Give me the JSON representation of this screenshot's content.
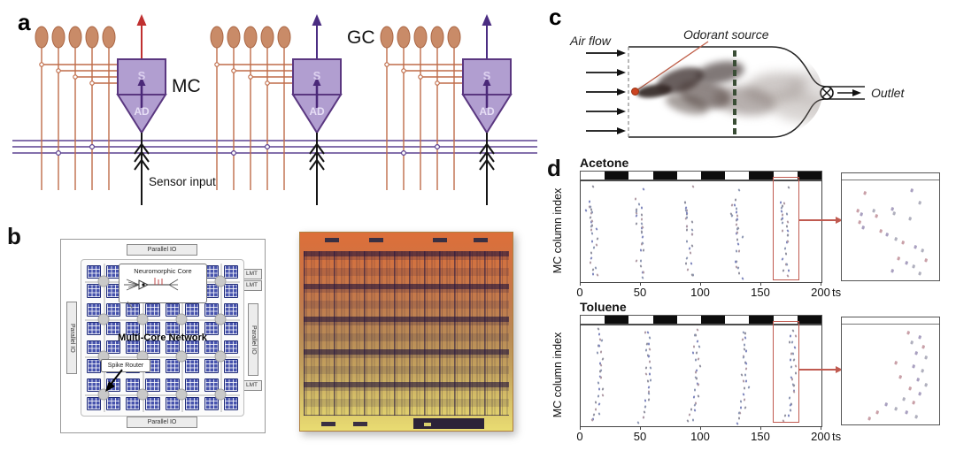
{
  "panels": {
    "a": {
      "label": "a",
      "gc_label": "GC",
      "mc_label": "MC",
      "soma_label": "S",
      "ad_label": "AD",
      "sensor_input_label": "Sensor input",
      "num_units": 3,
      "cells_per_unit": 5,
      "colors": {
        "cell_fill": "#c98b68",
        "cell_stroke": "#aa6644",
        "unit_fill": "#b19ed0",
        "unit_stroke": "#5a3780",
        "orange_line": "#bf6c49",
        "purple_line": "#5c4190",
        "arrow_red": "#c03030",
        "arrow_purple": "#4b2d82",
        "sensor_line": "#151515"
      }
    },
    "b": {
      "label": "b",
      "parallel_io_label": "Parallel IO",
      "lmt_label": "LMT",
      "neuromorphic_core_label": "Neuromorphic Core",
      "network_label": "Multi-Core Network",
      "spike_router_label": "Spike Router",
      "grid": {
        "cols": 8,
        "rows": 8,
        "routers_per_side": 4
      },
      "colors": {
        "core_fill": "#4753ad",
        "core_stroke": "#1e2a78",
        "router_fill": "#c9c9c9",
        "io_fill": "#ececec"
      }
    },
    "c": {
      "label": "c",
      "air_flow_label": "Air flow",
      "odorant_source_label": "Odorant source",
      "outlet_label": "Outlet",
      "num_inlet_arrows": 5,
      "colors": {
        "source_dot": "#cc4422",
        "pointer_line": "#c0604a",
        "sensor_bar_green": "#3a4d35"
      }
    },
    "d": {
      "label": "d"
    }
  },
  "chart_data": [
    {
      "id": 0,
      "type": "scatter",
      "title": "Acetone",
      "ylabel": "MC column index",
      "x_unit": "ts",
      "xlim": [
        0,
        200
      ],
      "xticks": [
        0,
        50,
        100,
        150,
        200
      ],
      "stimulus_blocks_ts": [
        [
          20,
          40
        ],
        [
          60,
          80
        ],
        [
          100,
          120
        ],
        [
          140,
          160
        ],
        [
          180,
          200
        ]
      ],
      "trial_onsets_ts": [
        3,
        43,
        83,
        123,
        163
      ],
      "spike_template": [
        [
          9,
          0.07
        ],
        [
          4,
          0.2
        ],
        [
          5,
          0.23
        ],
        [
          4,
          0.26
        ],
        [
          6,
          0.27
        ],
        [
          3,
          0.3
        ],
        [
          5,
          0.31
        ],
        [
          7,
          0.33
        ],
        [
          4,
          0.36
        ],
        [
          6,
          0.38
        ],
        [
          8,
          0.4
        ],
        [
          5,
          0.43
        ],
        [
          7,
          0.45
        ],
        [
          9,
          0.47
        ],
        [
          6,
          0.5
        ],
        [
          8,
          0.52
        ],
        [
          10,
          0.55
        ],
        [
          7,
          0.6
        ],
        [
          9,
          0.62
        ],
        [
          8,
          0.67
        ],
        [
          7,
          0.7
        ],
        [
          5,
          0.78
        ],
        [
          6,
          0.81
        ],
        [
          8,
          0.84
        ],
        [
          7,
          0.88
        ],
        [
          9,
          0.91
        ],
        [
          10,
          0.94
        ]
      ],
      "highlight_box_ts": [
        160,
        181
      ],
      "dot_colors": [
        "#91919f",
        "#7e86bd",
        "#b09aa4",
        "#8d97b3"
      ],
      "inset_dot_colors": [
        "#c9a0a8",
        "#a9a0c0",
        "#b0b0be"
      ],
      "inset_dots": [
        [
          0.24,
          0.12
        ],
        [
          0.72,
          0.1
        ],
        [
          0.8,
          0.22
        ],
        [
          0.16,
          0.3
        ],
        [
          0.2,
          0.34
        ],
        [
          0.33,
          0.3
        ],
        [
          0.35,
          0.35
        ],
        [
          0.52,
          0.28
        ],
        [
          0.54,
          0.33
        ],
        [
          0.18,
          0.42
        ],
        [
          0.22,
          0.47
        ],
        [
          0.7,
          0.38
        ],
        [
          0.4,
          0.5
        ],
        [
          0.46,
          0.54
        ],
        [
          0.55,
          0.58
        ],
        [
          0.63,
          0.62
        ],
        [
          0.75,
          0.66
        ],
        [
          0.83,
          0.7
        ],
        [
          0.58,
          0.78
        ],
        [
          0.66,
          0.82
        ],
        [
          0.74,
          0.86
        ],
        [
          0.86,
          0.8
        ],
        [
          0.52,
          0.9
        ],
        [
          0.8,
          0.93
        ]
      ]
    },
    {
      "id": 1,
      "type": "scatter",
      "title": "Toluene",
      "ylabel": "MC column index",
      "x_unit": "ts",
      "xlim": [
        0,
        200
      ],
      "xticks": [
        0,
        50,
        100,
        150,
        200
      ],
      "stimulus_blocks_ts": [
        [
          20,
          40
        ],
        [
          60,
          80
        ],
        [
          100,
          120
        ],
        [
          140,
          160
        ],
        [
          180,
          200
        ]
      ],
      "trial_onsets_ts": [
        3,
        43,
        83,
        123,
        163
      ],
      "spike_template": [
        [
          13,
          0.06
        ],
        [
          12,
          0.09
        ],
        [
          14,
          0.12
        ],
        [
          13,
          0.16
        ],
        [
          12,
          0.19
        ],
        [
          14,
          0.22
        ],
        [
          13,
          0.26
        ],
        [
          12,
          0.29
        ],
        [
          14,
          0.33
        ],
        [
          13,
          0.36
        ],
        [
          15,
          0.4
        ],
        [
          13,
          0.43
        ],
        [
          14,
          0.47
        ],
        [
          12,
          0.5
        ],
        [
          14,
          0.54
        ],
        [
          13,
          0.57
        ],
        [
          15,
          0.61
        ],
        [
          13,
          0.64
        ],
        [
          14,
          0.68
        ],
        [
          12,
          0.72
        ],
        [
          11,
          0.76
        ],
        [
          12,
          0.8
        ],
        [
          10,
          0.83
        ],
        [
          11,
          0.86
        ],
        [
          8,
          0.89
        ],
        [
          9,
          0.92
        ],
        [
          6,
          0.95
        ]
      ],
      "highlight_box_ts": [
        160,
        181
      ],
      "dot_colors": [
        "#91919f",
        "#7e86bd",
        "#b09aa4",
        "#8d97b3"
      ],
      "inset_dot_colors": [
        "#c9a0a8",
        "#a9a0c0",
        "#b0b0be"
      ],
      "inset_dots": [
        [
          0.68,
          0.08
        ],
        [
          0.8,
          0.12
        ],
        [
          0.72,
          0.18
        ],
        [
          0.84,
          0.22
        ],
        [
          0.76,
          0.28
        ],
        [
          0.86,
          0.33
        ],
        [
          0.55,
          0.38
        ],
        [
          0.74,
          0.42
        ],
        [
          0.83,
          0.46
        ],
        [
          0.6,
          0.52
        ],
        [
          0.78,
          0.55
        ],
        [
          0.86,
          0.6
        ],
        [
          0.7,
          0.64
        ],
        [
          0.8,
          0.69
        ],
        [
          0.64,
          0.74
        ],
        [
          0.74,
          0.78
        ],
        [
          0.45,
          0.8
        ],
        [
          0.55,
          0.84
        ],
        [
          0.36,
          0.88
        ],
        [
          0.66,
          0.88
        ],
        [
          0.76,
          0.92
        ],
        [
          0.28,
          0.94
        ]
      ]
    }
  ]
}
